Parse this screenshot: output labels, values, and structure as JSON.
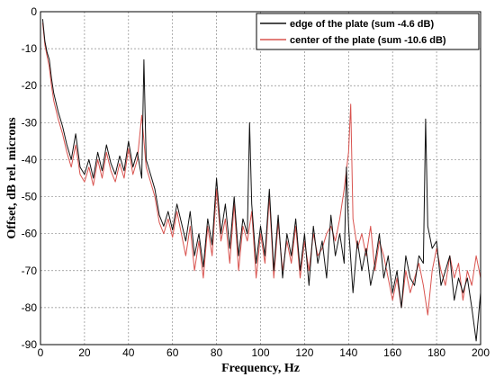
{
  "chart_data": {
    "type": "line",
    "title": "",
    "xlabel": "Frequency, Hz",
    "ylabel": "Offset, dB rel. microns",
    "xlim": [
      0,
      200
    ],
    "ylim": [
      -90,
      0
    ],
    "x_ticks": [
      "0",
      "20",
      "40",
      "60",
      "80",
      "100",
      "120",
      "140",
      "160",
      "180",
      "200"
    ],
    "y_ticks": [
      "0",
      "-10",
      "-20",
      "-30",
      "-40",
      "-50",
      "-60",
      "-70",
      "-80",
      "-90"
    ],
    "grid": true,
    "legend_position": "top-right",
    "series": [
      {
        "name": "edge of the plate (sum -4.6 dB)",
        "color": "#111111",
        "x": [
          1,
          2,
          3,
          4,
          5,
          6,
          8,
          10,
          12,
          14,
          16,
          18,
          20,
          22,
          24,
          26,
          28,
          30,
          32,
          34,
          36,
          38,
          40,
          42,
          44,
          46,
          47,
          48,
          50,
          52,
          54,
          56,
          58,
          60,
          62,
          64,
          66,
          68,
          70,
          72,
          74,
          76,
          78,
          80,
          82,
          84,
          86,
          88,
          90,
          92,
          94,
          95,
          96,
          98,
          100,
          102,
          104,
          106,
          108,
          110,
          112,
          114,
          116,
          118,
          120,
          122,
          124,
          126,
          128,
          130,
          132,
          134,
          136,
          138,
          139,
          140,
          142,
          144,
          146,
          148,
          150,
          152,
          154,
          156,
          158,
          160,
          162,
          164,
          166,
          168,
          170,
          172,
          174,
          175,
          176,
          178,
          180,
          182,
          184,
          186,
          188,
          190,
          192,
          194,
          196,
          198,
          200
        ],
        "y": [
          -2,
          -8,
          -11,
          -13,
          -18,
          -22,
          -27,
          -31,
          -36,
          -40,
          -33,
          -42,
          -44,
          -40,
          -45,
          -38,
          -43,
          -36,
          -41,
          -44,
          -39,
          -43,
          -35,
          -42,
          -38,
          -45,
          -13,
          -40,
          -44,
          -48,
          -55,
          -58,
          -54,
          -59,
          -52,
          -57,
          -62,
          -54,
          -66,
          -60,
          -69,
          -56,
          -63,
          -45,
          -60,
          -52,
          -64,
          -50,
          -66,
          -56,
          -60,
          -30,
          -52,
          -68,
          -58,
          -66,
          -48,
          -70,
          -55,
          -72,
          -60,
          -66,
          -56,
          -70,
          -60,
          -74,
          -58,
          -68,
          -62,
          -72,
          -55,
          -66,
          -60,
          -68,
          -42,
          -58,
          -76,
          -62,
          -70,
          -64,
          -74,
          -68,
          -60,
          -72,
          -66,
          -76,
          -70,
          -80,
          -66,
          -72,
          -74,
          -66,
          -68,
          -29,
          -58,
          -64,
          -62,
          -74,
          -70,
          -66,
          -78,
          -72,
          -76,
          -72,
          -80,
          -89,
          -76
        ]
      },
      {
        "name": "center of the plate (sum -10.6 dB)",
        "color": "#d9534f",
        "x": [
          1,
          2,
          3,
          4,
          5,
          6,
          8,
          10,
          12,
          14,
          16,
          18,
          20,
          22,
          24,
          26,
          28,
          30,
          32,
          34,
          36,
          38,
          40,
          42,
          44,
          46,
          48,
          50,
          52,
          54,
          56,
          58,
          60,
          62,
          64,
          66,
          68,
          70,
          72,
          74,
          76,
          78,
          80,
          82,
          84,
          86,
          88,
          90,
          92,
          94,
          96,
          98,
          100,
          102,
          104,
          106,
          108,
          110,
          112,
          114,
          116,
          118,
          120,
          122,
          124,
          126,
          128,
          130,
          132,
          134,
          136,
          138,
          140,
          141,
          142,
          144,
          146,
          148,
          150,
          152,
          154,
          156,
          158,
          160,
          162,
          164,
          166,
          168,
          170,
          172,
          174,
          176,
          178,
          180,
          182,
          184,
          186,
          188,
          190,
          192,
          194,
          196,
          198,
          200
        ],
        "y": [
          -3,
          -9,
          -12,
          -15,
          -20,
          -24,
          -29,
          -33,
          -38,
          -42,
          -36,
          -44,
          -46,
          -42,
          -47,
          -40,
          -45,
          -38,
          -43,
          -46,
          -41,
          -45,
          -37,
          -44,
          -40,
          -28,
          -42,
          -46,
          -50,
          -57,
          -60,
          -56,
          -61,
          -54,
          -60,
          -66,
          -58,
          -70,
          -62,
          -72,
          -58,
          -66,
          -48,
          -62,
          -56,
          -68,
          -52,
          -70,
          -58,
          -62,
          -54,
          -72,
          -60,
          -68,
          -50,
          -72,
          -57,
          -70,
          -62,
          -68,
          -58,
          -72,
          -62,
          -70,
          -60,
          -66,
          -64,
          -60,
          -58,
          -62,
          -56,
          -48,
          -38,
          -25,
          -56,
          -64,
          -60,
          -66,
          -58,
          -70,
          -62,
          -66,
          -72,
          -78,
          -72,
          -80,
          -70,
          -76,
          -72,
          -68,
          -74,
          -82,
          -70,
          -64,
          -70,
          -74,
          -66,
          -72,
          -68,
          -78,
          -70,
          -74,
          -66,
          -72
        ]
      }
    ]
  }
}
